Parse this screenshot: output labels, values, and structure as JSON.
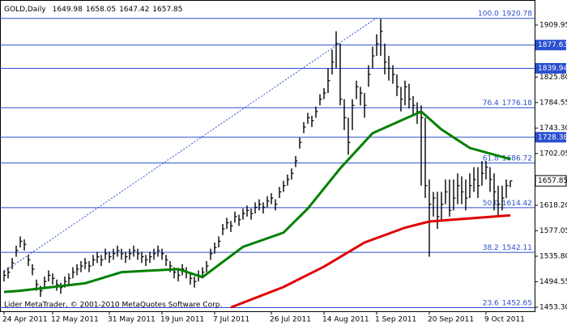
{
  "chart_data": {
    "type": "ohlc",
    "title": "GOLD,Daily",
    "header_values": [
      1649.98,
      1658.05,
      1647.42,
      1657.85
    ],
    "footer": "Lider MetaTrader, © 2001-2010 MetaQuotes Software Corp.",
    "bar_color": "#000000",
    "high": [
      1513,
      1518,
      1533,
      1553,
      1568,
      1563,
      1538,
      1523,
      1498,
      1488,
      1503,
      1513,
      1508,
      1498,
      1493,
      1503,
      1508,
      1518,
      1523,
      1528,
      1533,
      1528,
      1538,
      1543,
      1538,
      1548,
      1543,
      1548,
      1553,
      1548,
      1543,
      1548,
      1553,
      1548,
      1543,
      1538,
      1543,
      1548,
      1553,
      1548,
      1538,
      1528,
      1518,
      1513,
      1523,
      1518,
      1508,
      1503,
      1513,
      1518,
      1528,
      1548,
      1558,
      1568,
      1588,
      1598,
      1593,
      1608,
      1603,
      1613,
      1618,
      1613,
      1623,
      1628,
      1623,
      1633,
      1638,
      1628,
      1648,
      1658,
      1668,
      1678,
      1698,
      1728,
      1753,
      1768,
      1763,
      1778,
      1798,
      1808,
      1840,
      1870,
      1900,
      1880,
      1790,
      1760,
      1790,
      1820,
      1810,
      1800,
      1845,
      1875,
      1895,
      1920,
      1880,
      1860,
      1845,
      1830,
      1810,
      1820,
      1815,
      1795,
      1785,
      1780,
      1760,
      1660,
      1640,
      1640,
      1640,
      1660,
      1660,
      1660,
      1670,
      1665,
      1660,
      1670,
      1680,
      1680,
      1690,
      1690,
      1680,
      1670,
      1650,
      1650,
      1660,
      1658.05
    ],
    "low": [
      1495,
      1500,
      1515,
      1535,
      1550,
      1545,
      1520,
      1505,
      1480,
      1470,
      1485,
      1495,
      1490,
      1480,
      1475,
      1485,
      1490,
      1500,
      1505,
      1510,
      1515,
      1510,
      1520,
      1525,
      1520,
      1530,
      1525,
      1530,
      1535,
      1530,
      1525,
      1530,
      1535,
      1530,
      1525,
      1520,
      1525,
      1530,
      1535,
      1530,
      1520,
      1510,
      1500,
      1495,
      1505,
      1500,
      1490,
      1485,
      1495,
      1500,
      1510,
      1530,
      1540,
      1550,
      1570,
      1580,
      1575,
      1590,
      1585,
      1595,
      1600,
      1595,
      1605,
      1610,
      1605,
      1615,
      1620,
      1610,
      1630,
      1640,
      1650,
      1660,
      1680,
      1710,
      1735,
      1750,
      1745,
      1760,
      1780,
      1790,
      1800,
      1830,
      1840,
      1780,
      1740,
      1700,
      1740,
      1790,
      1780,
      1760,
      1810,
      1840,
      1860,
      1860,
      1830,
      1820,
      1815,
      1795,
      1770,
      1780,
      1775,
      1765,
      1750,
      1650,
      1630,
      1535,
      1600,
      1580,
      1595,
      1620,
      1600,
      1610,
      1620,
      1620,
      1610,
      1630,
      1640,
      1630,
      1650,
      1660,
      1640,
      1610,
      1600,
      1610,
      1630,
      1647.42
    ],
    "close": [
      1505,
      1510,
      1525,
      1545,
      1560,
      1555,
      1530,
      1515,
      1490,
      1480,
      1495,
      1505,
      1500,
      1490,
      1485,
      1495,
      1500,
      1510,
      1515,
      1520,
      1525,
      1520,
      1530,
      1535,
      1530,
      1540,
      1535,
      1540,
      1545,
      1540,
      1535,
      1540,
      1545,
      1540,
      1535,
      1530,
      1535,
      1540,
      1545,
      1540,
      1530,
      1520,
      1510,
      1505,
      1515,
      1510,
      1500,
      1495,
      1505,
      1510,
      1520,
      1540,
      1550,
      1560,
      1580,
      1590,
      1585,
      1600,
      1595,
      1605,
      1610,
      1605,
      1615,
      1620,
      1615,
      1625,
      1630,
      1620,
      1640,
      1650,
      1660,
      1670,
      1690,
      1720,
      1745,
      1760,
      1755,
      1770,
      1790,
      1800,
      1820,
      1850,
      1880,
      1790,
      1760,
      1720,
      1780,
      1810,
      1800,
      1780,
      1830,
      1860,
      1880,
      1900,
      1850,
      1840,
      1830,
      1810,
      1790,
      1810,
      1790,
      1780,
      1770,
      1760,
      1650,
      1620,
      1630,
      1600,
      1620,
      1640,
      1610,
      1630,
      1650,
      1640,
      1630,
      1650,
      1660,
      1650,
      1670,
      1680,
      1660,
      1640,
      1620,
      1630,
      1650,
      1657.85
    ],
    "moving_averages": [
      {
        "color": "#008000",
        "x": [
          0,
          4,
          20,
          29,
          43,
          49,
          59,
          69,
          75,
          83,
          91,
          103,
          108,
          115,
          125
        ],
        "values": [
          1478,
          1480,
          1492,
          1510,
          1515,
          1502,
          1551,
          1574,
          1613,
          1678,
          1735,
          1770,
          1741,
          1711,
          1693
        ]
      },
      {
        "color": "#e00000",
        "x": [
          56,
          69,
          79,
          89,
          99,
          105,
          115,
          125
        ],
        "values": [
          1453,
          1486,
          1519,
          1558,
          1582,
          1592,
          1597,
          1602
        ]
      }
    ],
    "xtick_labels": [
      {
        "index": 0,
        "label": "24 Apr 2011"
      },
      {
        "index": 12,
        "label": "12 May 2011"
      },
      {
        "index": 26,
        "label": "31 May 2011"
      },
      {
        "index": 39,
        "label": "19 Jun 2011"
      },
      {
        "index": 52,
        "label": "7 Jul 2011"
      },
      {
        "index": 66,
        "label": "26 Jul 2011"
      },
      {
        "index": 79,
        "label": "14 Aug 2011"
      },
      {
        "index": 92,
        "label": "1 Sep 2011"
      },
      {
        "index": 105,
        "label": "20 Sep 2011"
      },
      {
        "index": 119,
        "label": "9 Oct 2011"
      }
    ],
    "ylim": [
      1453.3,
      1909.95
    ],
    "yticks": [
      {
        "value": 1909.95,
        "label": "1909.95"
      },
      {
        "value": 1825.8,
        "label": "1825.80"
      },
      {
        "value": 1784.55,
        "label": "1784.55"
      },
      {
        "value": 1743.3,
        "label": "1743.30"
      },
      {
        "value": 1702.05,
        "label": "1702.05"
      },
      {
        "value": 1618.2,
        "label": "1618.20"
      },
      {
        "value": 1577.05,
        "label": "1577.05"
      },
      {
        "value": 1535.8,
        "label": "1535.80"
      },
      {
        "value": 1494.55,
        "label": "1494.55"
      },
      {
        "value": 1453.3,
        "label": "1453.30"
      }
    ],
    "fib_levels": [
      {
        "level": "100.0",
        "value": 1920.78
      },
      {
        "level": "76.4",
        "value": 1776.18
      },
      {
        "level": "61.8",
        "value": 1686.72
      },
      {
        "level": "50.0",
        "value": 1614.42
      },
      {
        "level": "38.2",
        "value": 1542.11
      },
      {
        "level": "23.6",
        "value": 1452.65
      }
    ],
    "price_boxes": [
      1877.63,
      1839.94,
      1728.38
    ],
    "last_price": 1657.85,
    "level_color": "#2a4fd0"
  }
}
